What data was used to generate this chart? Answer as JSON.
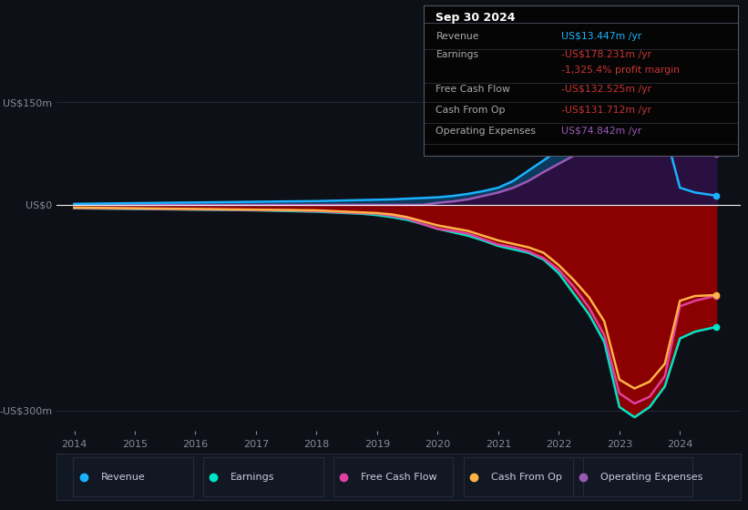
{
  "bg_color": "#0d1117",
  "plot_bg_color": "#131926",
  "title": "Sep 30 2024",
  "years": [
    2014,
    2014.5,
    2015,
    2015.5,
    2016,
    2016.5,
    2017,
    2017.5,
    2018,
    2018.25,
    2018.5,
    2018.75,
    2019,
    2019.25,
    2019.5,
    2019.75,
    2020,
    2020.25,
    2020.5,
    2020.75,
    2021,
    2021.25,
    2021.5,
    2021.75,
    2022,
    2022.25,
    2022.5,
    2022.75,
    2023,
    2023.25,
    2023.5,
    2023.75,
    2024,
    2024.25,
    2024.6
  ],
  "revenue": [
    1.5,
    2,
    2.5,
    3,
    3.5,
    4,
    4.5,
    5,
    5.5,
    6,
    6.5,
    7,
    7.5,
    8,
    9,
    10,
    11,
    13,
    16,
    20,
    25,
    35,
    50,
    65,
    80,
    95,
    110,
    125,
    155,
    145,
    125,
    108,
    25,
    18,
    13.447
  ],
  "earnings": [
    -5,
    -5.5,
    -6,
    -6.5,
    -7,
    -7.5,
    -8,
    -9,
    -10,
    -11,
    -12,
    -13,
    -15,
    -18,
    -22,
    -28,
    -35,
    -40,
    -45,
    -52,
    -60,
    -65,
    -70,
    -80,
    -100,
    -130,
    -160,
    -200,
    -295,
    -310,
    -295,
    -265,
    -195,
    -185,
    -178.231
  ],
  "free_cash_flow": [
    -4.5,
    -5,
    -5.5,
    -6,
    -6.5,
    -7,
    -7.5,
    -8,
    -9,
    -10,
    -11,
    -12,
    -13,
    -16,
    -20,
    -28,
    -35,
    -38,
    -42,
    -50,
    -58,
    -62,
    -68,
    -78,
    -95,
    -120,
    -150,
    -190,
    -275,
    -290,
    -280,
    -250,
    -148,
    -140,
    -132.525
  ],
  "cash_from_op": [
    -4,
    -4.5,
    -5,
    -5.5,
    -6,
    -6.5,
    -7,
    -7.5,
    -8,
    -9,
    -10,
    -11,
    -12,
    -14,
    -18,
    -24,
    -30,
    -34,
    -38,
    -45,
    -52,
    -57,
    -62,
    -70,
    -88,
    -110,
    -135,
    -170,
    -255,
    -268,
    -258,
    -232,
    -140,
    -133,
    -131.712
  ],
  "op_expenses": [
    0,
    0,
    0,
    0,
    0,
    0,
    0,
    0,
    0,
    0,
    0,
    0,
    0,
    0,
    0,
    0,
    3,
    5,
    8,
    13,
    18,
    25,
    35,
    48,
    60,
    72,
    82,
    92,
    100,
    98,
    92,
    86,
    82,
    78,
    74.842
  ],
  "revenue_color": "#1ab2ff",
  "earnings_color": "#00e5c8",
  "free_cash_flow_color": "#e040a0",
  "cash_from_op_color": "#ffb347",
  "op_expenses_color": "#9b59b6",
  "fill_revenue_positive": "#0d3a5c",
  "fill_earnings_negative": "#8b0000",
  "fill_op_expenses": "#2a1040",
  "fill_deep_dark": "#3d0000",
  "ylim": [
    -330,
    165
  ],
  "xlim": [
    2013.7,
    2025.0
  ],
  "yticks": [
    -300,
    0,
    150
  ],
  "ytick_labels": [
    "-US$300m",
    "US$0",
    "US$150m"
  ],
  "xticks": [
    2014,
    2015,
    2016,
    2017,
    2018,
    2019,
    2020,
    2021,
    2022,
    2023,
    2024
  ],
  "info_box": {
    "title": "Sep 30 2024",
    "rows": [
      {
        "label": "Revenue",
        "value": "US$13.447m /yr",
        "value_color": "#1ab2ff"
      },
      {
        "label": "Earnings",
        "value": "-US$178.231m /yr",
        "value_color": "#cc3333"
      },
      {
        "label": "",
        "value": "-1,325.4% profit margin",
        "value_color": "#cc3333"
      },
      {
        "label": "Free Cash Flow",
        "value": "-US$132.525m /yr",
        "value_color": "#cc3333"
      },
      {
        "label": "Cash From Op",
        "value": "-US$131.712m /yr",
        "value_color": "#cc3333"
      },
      {
        "label": "Operating Expenses",
        "value": "US$74.842m /yr",
        "value_color": "#9b59b6"
      }
    ]
  },
  "legend_items": [
    {
      "label": "Revenue",
      "color": "#1ab2ff"
    },
    {
      "label": "Earnings",
      "color": "#00e5c8"
    },
    {
      "label": "Free Cash Flow",
      "color": "#e040a0"
    },
    {
      "label": "Cash From Op",
      "color": "#ffb347"
    },
    {
      "label": "Operating Expenses",
      "color": "#9b59b6"
    }
  ]
}
